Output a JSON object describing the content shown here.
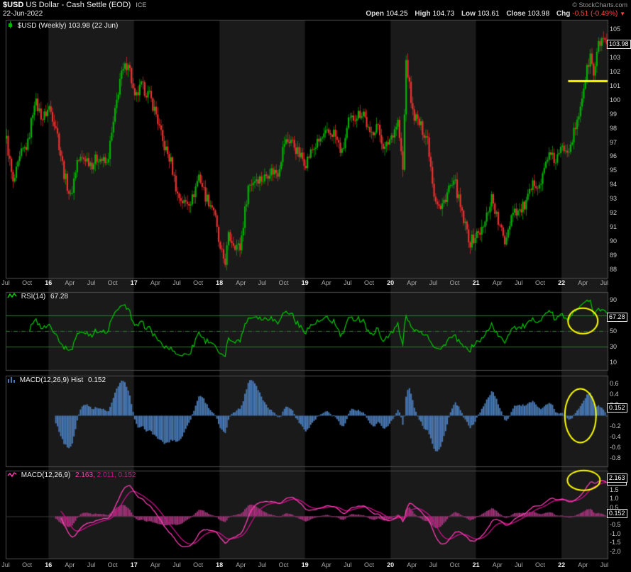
{
  "header": {
    "symbol": "$USD",
    "title": "US Dollar - Cash Settle (EOD)",
    "exchange": "ICE",
    "copyright": "© StockCharts.com",
    "date": "22-Jun-2022",
    "quote": {
      "open_label": "Open",
      "open": "104.25",
      "high_label": "High",
      "high": "104.73",
      "low_label": "Low",
      "low": "103.61",
      "close_label": "Close",
      "close": "103.98",
      "chg_label": "Chg",
      "chg": "-0.51 (-0.49%)",
      "chg_arrow": "▼"
    }
  },
  "colors": {
    "background": "#000000",
    "band": "#1a1a1a",
    "panel_border": "#4f4f4f",
    "up": "#00b400",
    "down": "#f03030",
    "rsi": "#00cc00",
    "rsi_guides": "#009900",
    "macd_hist_blue": "#4a7ab5",
    "macd_line": "#ff3eb5",
    "macd_signal": "#cc0e8a",
    "macd_hist_pink": "#a03378",
    "annotation": "#ffff00",
    "axis_text": "#cccccc"
  },
  "panels": {
    "price": {
      "legend": "$USD (Weekly) 103.98 (22 Jun)",
      "ticks": [
        105,
        104,
        103,
        102,
        101,
        100,
        99,
        98,
        97,
        96,
        95,
        94,
        93,
        92,
        91,
        90,
        89,
        88
      ]
    },
    "rsi": {
      "legend_name": "RSI(14)",
      "legend_value": "67.28",
      "ticks": [
        90,
        70,
        50,
        30,
        10
      ],
      "overbought": 70,
      "mid": 50,
      "oversold": 30
    },
    "hist": {
      "legend_name": "MACD(12,26,9) Hist",
      "legend_value": "0.152",
      "ticks": [
        0.6,
        0.4,
        0.2,
        -0.2,
        -0.4,
        -0.6,
        -0.8
      ]
    },
    "macd": {
      "legend_name": "MACD(12,26,9)",
      "v1": "2.163,",
      "v2": "2.011,",
      "v3": "0.152",
      "ticks": [
        2.0,
        1.5,
        1.0,
        0.5,
        -0.5,
        -1.0,
        -1.5,
        -2.0
      ]
    }
  },
  "value_boxes": [
    {
      "name": "macd-signal-box",
      "panel": "macd",
      "value": 2.011,
      "text": "2.011"
    },
    {
      "name": "macd-line-box",
      "panel": "macd",
      "value": 2.163,
      "text": "2.163"
    },
    {
      "name": "macd-hist-box",
      "panel": "macd",
      "value": 0.152,
      "text": "0.152"
    },
    {
      "name": "price-box",
      "panel": "price",
      "value": 103.98,
      "text": "103.98"
    },
    {
      "name": "rsi-box",
      "panel": "rsi",
      "value": 67.28,
      "text": "67.28"
    },
    {
      "name": "hist-box",
      "panel": "hist",
      "value": 0.152,
      "text": "0.152"
    }
  ],
  "xaxis": {
    "labels": [
      "Jul",
      "Oct",
      "16",
      "Apr",
      "Jul",
      "Oct",
      "17",
      "Apr",
      "Jul",
      "Oct",
      "18",
      "Apr",
      "Jul",
      "Oct",
      "19",
      "Apr",
      "Jul",
      "Oct",
      "20",
      "Apr",
      "Jul",
      "Oct",
      "21",
      "Apr",
      "Jul",
      "Oct",
      "22",
      "Apr",
      "Jul"
    ],
    "year_indices": [
      2,
      6,
      10,
      14,
      18,
      22,
      26
    ]
  },
  "annotations": [
    {
      "type": "hline",
      "panel": "price",
      "value": 101.35,
      "week_from": 342,
      "week_to": 366
    },
    {
      "type": "ellipse",
      "panel": "rsi",
      "week": 350.5,
      "value": 63,
      "rx": 21,
      "ry": 18
    },
    {
      "type": "ellipse",
      "panel": "hist",
      "week": 349,
      "value": 0.0,
      "rx": 22,
      "ry": 38
    },
    {
      "type": "ellipse",
      "panel": "macd",
      "week": 351,
      "value": 2.05,
      "rx": 23,
      "ry": 14
    }
  ],
  "chart_data": {
    "type": "candlestick",
    "title": "$USD US Dollar - Cash Settle (EOD) ICE",
    "timeframe": "Weekly",
    "x_range": [
      "Jul-2015",
      "Jul-2022"
    ],
    "weeks": 366,
    "ylim": [
      87.4,
      105.7
    ],
    "bands_weeks": [
      [
        26,
        78
      ],
      [
        130,
        182
      ],
      [
        234,
        286
      ],
      [
        338,
        366
      ]
    ],
    "last_candle": {
      "open": 104.25,
      "high": 104.73,
      "low": 103.61,
      "close": 103.98
    },
    "indicators": {
      "rsi_period": 14,
      "rsi_last": 67.28,
      "macd_params": [
        12,
        26,
        9
      ],
      "macd_last": 2.163,
      "signal_last": 2.011,
      "hist_last": 0.152,
      "rsi_range": [
        0,
        100
      ],
      "hist_range": [
        -0.95,
        0.75
      ],
      "macd_range": [
        -2.4,
        2.6
      ]
    },
    "anchors_weekly_close": [
      [
        0,
        97.2
      ],
      [
        4,
        94.0
      ],
      [
        9,
        96.2
      ],
      [
        13,
        96.9
      ],
      [
        17,
        100.0
      ],
      [
        22,
        98.7
      ],
      [
        26,
        99.5
      ],
      [
        30,
        98.2
      ],
      [
        35,
        94.8
      ],
      [
        39,
        93.1
      ],
      [
        43,
        95.7
      ],
      [
        48,
        95.9
      ],
      [
        52,
        95.5
      ],
      [
        56,
        96.0
      ],
      [
        61,
        95.4
      ],
      [
        65,
        98.3
      ],
      [
        69,
        101.5
      ],
      [
        74,
        102.8
      ],
      [
        78,
        100.0
      ],
      [
        82,
        101.0
      ],
      [
        87,
        100.3
      ],
      [
        91,
        99.0
      ],
      [
        95,
        97.0
      ],
      [
        100,
        95.6
      ],
      [
        104,
        93.3
      ],
      [
        108,
        92.7
      ],
      [
        113,
        93.0
      ],
      [
        117,
        94.7
      ],
      [
        121,
        93.2
      ],
      [
        126,
        92.3
      ],
      [
        130,
        89.2
      ],
      [
        133,
        88.6
      ],
      [
        135,
        90.3
      ],
      [
        139,
        89.8
      ],
      [
        142,
        89.5
      ],
      [
        147,
        93.9
      ],
      [
        152,
        94.5
      ],
      [
        156,
        94.4
      ],
      [
        160,
        95.0
      ],
      [
        165,
        94.9
      ],
      [
        169,
        97.0
      ],
      [
        173,
        97.2
      ],
      [
        178,
        96.1
      ],
      [
        182,
        95.6
      ],
      [
        186,
        96.5
      ],
      [
        191,
        97.2
      ],
      [
        195,
        97.6
      ],
      [
        199,
        97.7
      ],
      [
        204,
        96.2
      ],
      [
        208,
        98.4
      ],
      [
        212,
        98.9
      ],
      [
        217,
        99.2
      ],
      [
        221,
        97.4
      ],
      [
        225,
        98.3
      ],
      [
        230,
        96.5
      ],
      [
        234,
        97.5
      ],
      [
        238,
        98.5
      ],
      [
        241,
        95.0
      ],
      [
        243,
        102.8
      ],
      [
        247,
        99.1
      ],
      [
        251,
        98.3
      ],
      [
        256,
        97.3
      ],
      [
        260,
        93.4
      ],
      [
        264,
        92.2
      ],
      [
        269,
        93.8
      ],
      [
        273,
        94.0
      ],
      [
        277,
        91.8
      ],
      [
        282,
        89.9
      ],
      [
        286,
        90.5
      ],
      [
        290,
        90.9
      ],
      [
        295,
        93.2
      ],
      [
        299,
        91.3
      ],
      [
        303,
        90.0
      ],
      [
        308,
        92.3
      ],
      [
        312,
        92.1
      ],
      [
        316,
        92.7
      ],
      [
        321,
        94.2
      ],
      [
        325,
        94.1
      ],
      [
        329,
        96.1
      ],
      [
        334,
        95.7
      ],
      [
        338,
        96.6
      ],
      [
        342,
        96.7
      ],
      [
        347,
        98.3
      ],
      [
        351,
        101.0
      ],
      [
        355,
        103.2
      ],
      [
        357,
        101.7
      ],
      [
        360,
        103.9
      ],
      [
        363,
        104.4
      ],
      [
        365,
        103.98
      ]
    ]
  }
}
